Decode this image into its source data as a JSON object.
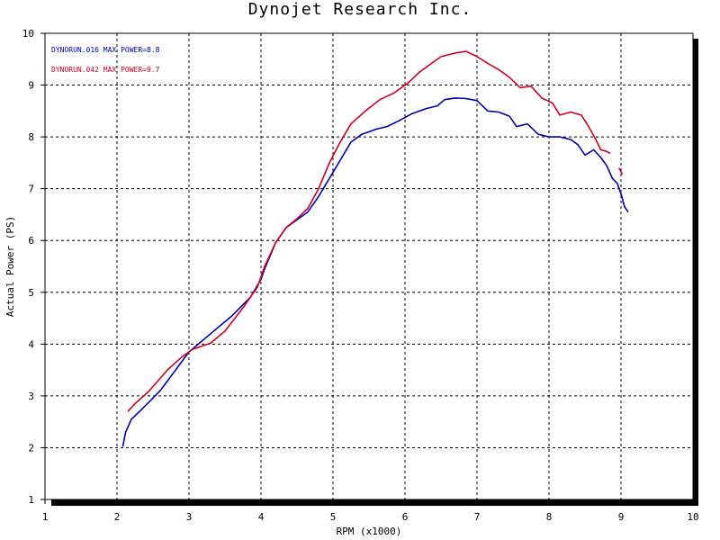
{
  "chart_data": {
    "type": "line",
    "title": "Dynojet  Research  Inc.",
    "xlabel": "RPM (x1000)",
    "ylabel": "Actual Power (PS)",
    "xlim": [
      1,
      10
    ],
    "ylim": [
      1,
      10
    ],
    "x_ticks": [
      1,
      2,
      3,
      4,
      5,
      6,
      7,
      8,
      9,
      10
    ],
    "y_ticks": [
      1,
      2,
      3,
      4,
      5,
      6,
      7,
      8,
      9,
      10
    ],
    "grid": true,
    "legend_position": "top-left",
    "series": [
      {
        "name": "DYNORUN.016  MAX POWER=8.8",
        "color": "#0000aa",
        "points": [
          [
            2.08,
            2.02
          ],
          [
            2.12,
            2.3
          ],
          [
            2.2,
            2.55
          ],
          [
            2.35,
            2.75
          ],
          [
            2.6,
            3.1
          ],
          [
            3.0,
            3.85
          ],
          [
            3.3,
            4.2
          ],
          [
            3.6,
            4.55
          ],
          [
            3.85,
            4.9
          ],
          [
            4.0,
            5.25
          ],
          [
            4.05,
            5.45
          ],
          [
            4.2,
            5.95
          ],
          [
            4.35,
            6.25
          ],
          [
            4.5,
            6.4
          ],
          [
            4.65,
            6.55
          ],
          [
            4.8,
            6.85
          ],
          [
            4.95,
            7.2
          ],
          [
            5.1,
            7.55
          ],
          [
            5.25,
            7.9
          ],
          [
            5.4,
            8.05
          ],
          [
            5.6,
            8.15
          ],
          [
            5.75,
            8.2
          ],
          [
            5.9,
            8.3
          ],
          [
            6.1,
            8.45
          ],
          [
            6.3,
            8.55
          ],
          [
            6.45,
            8.6
          ],
          [
            6.55,
            8.72
          ],
          [
            6.7,
            8.75
          ],
          [
            6.85,
            8.74
          ],
          [
            7.0,
            8.7
          ],
          [
            7.15,
            8.5
          ],
          [
            7.3,
            8.48
          ],
          [
            7.45,
            8.4
          ],
          [
            7.55,
            8.2
          ],
          [
            7.7,
            8.25
          ],
          [
            7.85,
            8.05
          ],
          [
            8.0,
            8.0
          ],
          [
            8.15,
            8.0
          ],
          [
            8.3,
            7.95
          ],
          [
            8.4,
            7.85
          ],
          [
            8.5,
            7.65
          ],
          [
            8.62,
            7.75
          ],
          [
            8.72,
            7.6
          ],
          [
            8.8,
            7.45
          ],
          [
            8.88,
            7.2
          ],
          [
            8.95,
            7.1
          ],
          [
            9.0,
            6.9
          ],
          [
            9.05,
            6.65
          ],
          [
            9.1,
            6.55
          ]
        ]
      },
      {
        "name": "DYNORUN.042  MAX POWER=9.7",
        "color": "#cc0022",
        "points": [
          [
            2.15,
            2.7
          ],
          [
            2.25,
            2.85
          ],
          [
            2.45,
            3.1
          ],
          [
            2.7,
            3.5
          ],
          [
            2.9,
            3.75
          ],
          [
            3.05,
            3.9
          ],
          [
            3.3,
            4.02
          ],
          [
            3.5,
            4.25
          ],
          [
            3.75,
            4.7
          ],
          [
            3.95,
            5.1
          ],
          [
            4.05,
            5.5
          ],
          [
            4.2,
            5.95
          ],
          [
            4.35,
            6.25
          ],
          [
            4.5,
            6.42
          ],
          [
            4.65,
            6.62
          ],
          [
            4.8,
            7.0
          ],
          [
            4.95,
            7.5
          ],
          [
            5.1,
            7.9
          ],
          [
            5.25,
            8.25
          ],
          [
            5.45,
            8.5
          ],
          [
            5.65,
            8.72
          ],
          [
            5.85,
            8.85
          ],
          [
            6.05,
            9.05
          ],
          [
            6.2,
            9.25
          ],
          [
            6.35,
            9.4
          ],
          [
            6.5,
            9.55
          ],
          [
            6.7,
            9.62
          ],
          [
            6.85,
            9.65
          ],
          [
            7.0,
            9.55
          ],
          [
            7.15,
            9.42
          ],
          [
            7.3,
            9.3
          ],
          [
            7.45,
            9.15
          ],
          [
            7.6,
            8.95
          ],
          [
            7.75,
            8.98
          ],
          [
            7.9,
            8.75
          ],
          [
            8.05,
            8.65
          ],
          [
            8.15,
            8.42
          ],
          [
            8.3,
            8.48
          ],
          [
            8.45,
            8.42
          ],
          [
            8.55,
            8.2
          ],
          [
            8.65,
            7.95
          ],
          [
            8.72,
            7.75
          ],
          [
            8.8,
            7.72
          ],
          [
            8.85,
            7.68
          ]
        ]
      },
      {
        "name": "",
        "color": "#cc0022",
        "points": [
          [
            8.97,
            7.4
          ],
          [
            9.02,
            7.28
          ]
        ]
      }
    ]
  }
}
